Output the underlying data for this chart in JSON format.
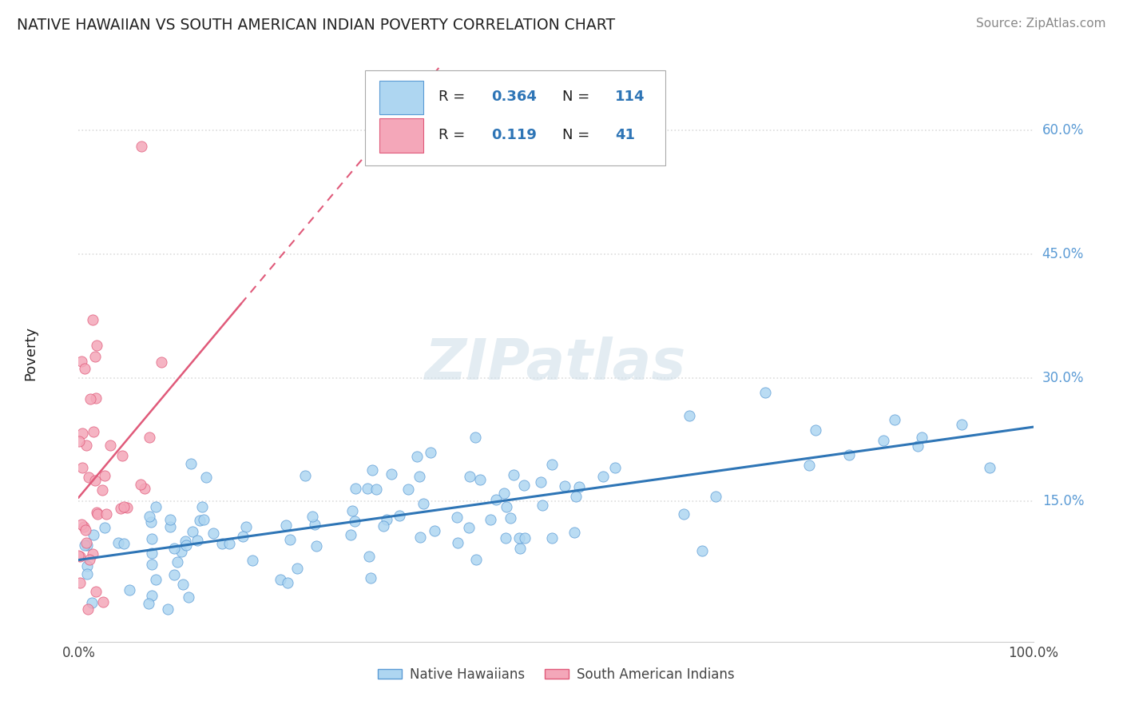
{
  "title": "NATIVE HAWAIIAN VS SOUTH AMERICAN INDIAN POVERTY CORRELATION CHART",
  "source": "Source: ZipAtlas.com",
  "ylabel": "Poverty",
  "yticks": [
    "15.0%",
    "30.0%",
    "45.0%",
    "60.0%"
  ],
  "ytick_vals": [
    0.15,
    0.3,
    0.45,
    0.6
  ],
  "xlim": [
    0.0,
    1.0
  ],
  "ylim": [
    -0.02,
    0.68
  ],
  "legend1_R": "0.364",
  "legend1_N": "114",
  "legend2_R": "0.119",
  "legend2_N": "41",
  "blue_scatter_color": "#AED6F1",
  "blue_edge_color": "#5B9BD5",
  "pink_scatter_color": "#F4A7B9",
  "pink_edge_color": "#E05A7A",
  "blue_line_color": "#2E75B6",
  "pink_line_color": "#E05A7A",
  "watermark_color": "#CCDDEE",
  "watermark_text": "ZIPatlas",
  "grid_color": "#DDDDDD",
  "ytick_color": "#5B9BD5",
  "title_color": "#222222",
  "source_color": "#888888",
  "ylabel_color": "#222222"
}
